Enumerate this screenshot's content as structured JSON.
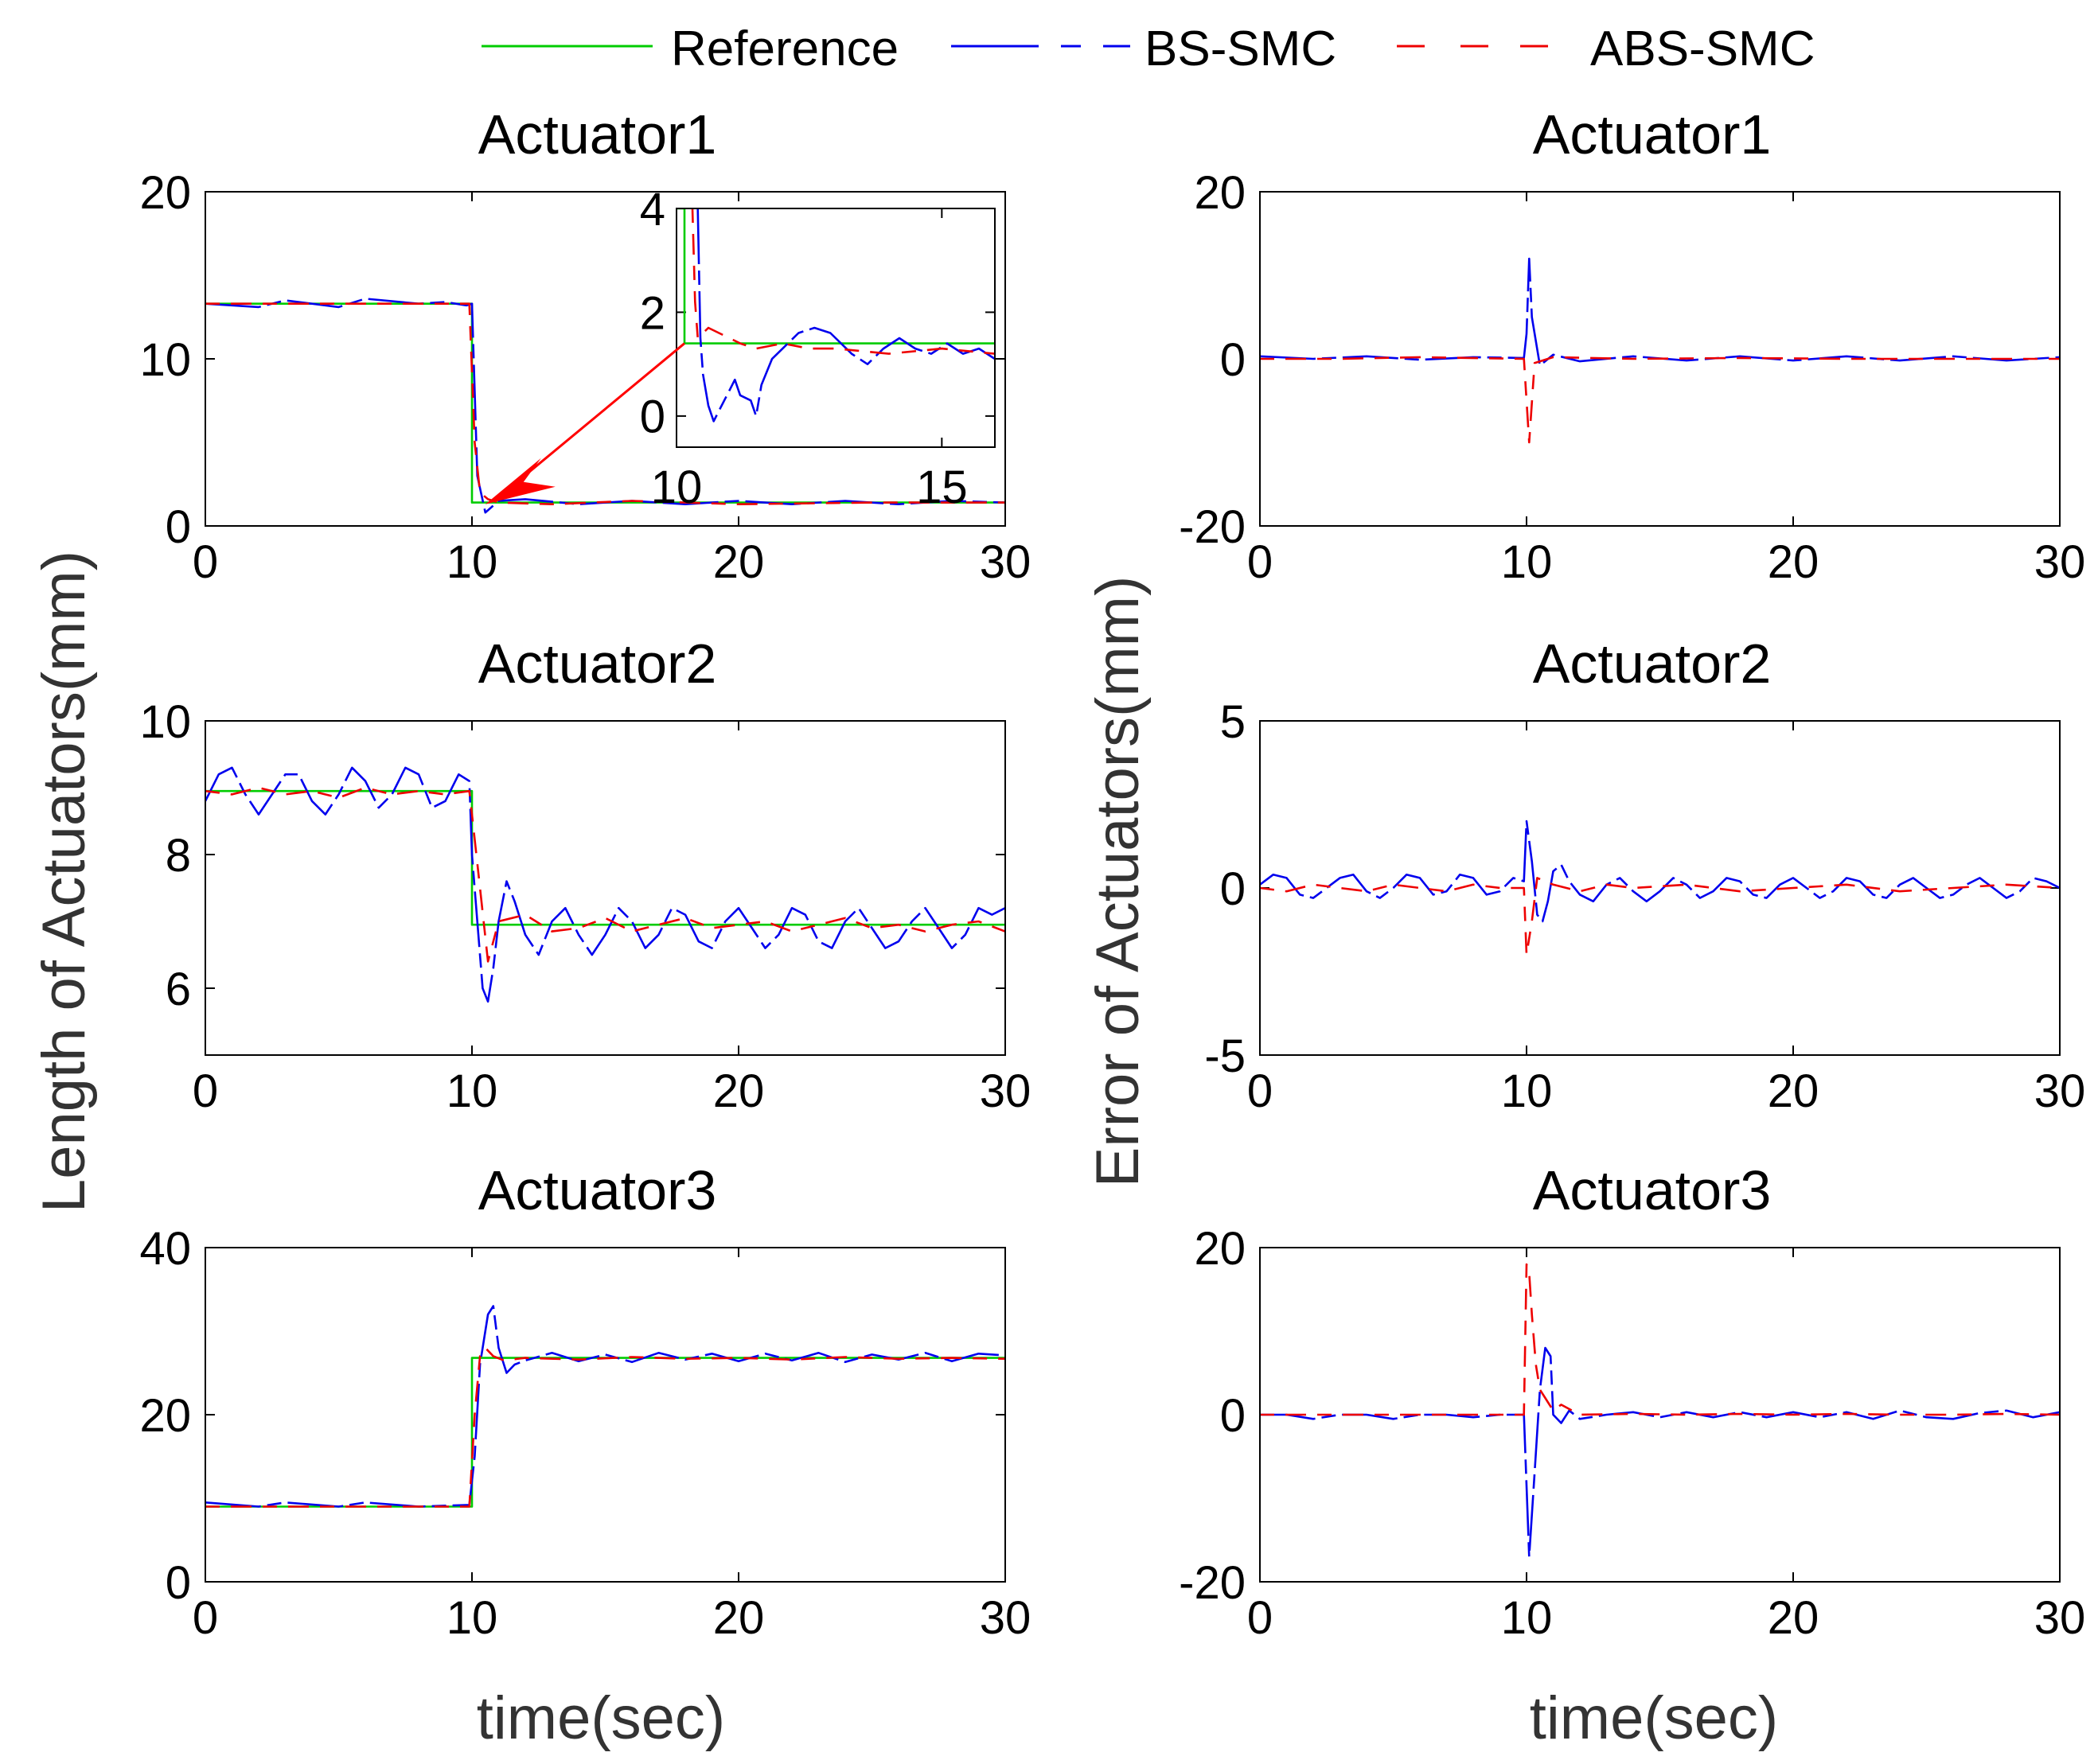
{
  "legend": {
    "items": [
      {
        "label": "Reference",
        "color": "#00cc00",
        "style": "solid"
      },
      {
        "label": "BS-SMC",
        "color": "#0000ee",
        "style": "dash"
      },
      {
        "label": "ABS-SMC",
        "color": "#ee0000",
        "style": "dash"
      }
    ]
  },
  "ylabels": {
    "left": "Length of Actuators(mm)",
    "right": "Error of Actuators(mm)"
  },
  "xlabel": "time(sec)",
  "chart_data": [
    {
      "id": "len1",
      "type": "line",
      "title": "Actuator1",
      "xlim": [
        0,
        30
      ],
      "ylim": [
        0,
        20
      ],
      "xticks": [
        "0",
        "10",
        "20",
        "30"
      ],
      "yticks": [
        "0",
        "10",
        "20"
      ],
      "series": [
        {
          "name": "Reference",
          "x": [
            0,
            10,
            10,
            30
          ],
          "y": [
            13.3,
            13.3,
            1.4,
            1.4
          ]
        },
        {
          "name": "BS-SMC",
          "x": [
            0,
            2,
            3,
            5,
            6,
            8,
            9,
            9.8,
            10.0,
            10.2,
            10.5,
            11,
            12,
            14,
            16,
            18,
            20,
            22,
            24,
            26,
            28,
            30
          ],
          "y": [
            13.3,
            13.1,
            13.5,
            13.1,
            13.6,
            13.3,
            13.4,
            13.2,
            13.3,
            3,
            0.8,
            1.5,
            1.6,
            1.3,
            1.5,
            1.3,
            1.5,
            1.3,
            1.5,
            1.3,
            1.5,
            1.4
          ]
        },
        {
          "name": "ABS-SMC",
          "x": [
            0,
            4,
            8,
            9.9,
            10.1,
            10.3,
            10.6,
            11,
            13,
            16,
            20,
            25,
            30
          ],
          "y": [
            13.3,
            13.3,
            13.3,
            13.3,
            5,
            2.0,
            1.6,
            1.4,
            1.3,
            1.5,
            1.3,
            1.4,
            1.4
          ]
        }
      ],
      "inset": {
        "xlim": [
          10,
          16
        ],
        "ylim": [
          -0.6,
          4
        ],
        "xticks": [
          "10",
          "15"
        ],
        "yticks": [
          "0",
          "2",
          "4"
        ],
        "series": [
          {
            "name": "Reference",
            "x": [
              10,
              10.15,
              10.15,
              16
            ],
            "y": [
              4,
              4,
              1.4,
              1.4
            ]
          },
          {
            "name": "BS-SMC",
            "x": [
              10.4,
              10.45,
              10.5,
              10.6,
              10.7,
              10.8,
              11.0,
              11.1,
              11.2,
              11.4,
              11.5,
              11.6,
              11.8,
              12.0,
              12.3,
              12.6,
              12.9,
              13.1,
              13.3,
              13.6,
              13.9,
              14.2,
              14.5,
              14.8,
              15.1,
              15.4,
              15.7,
              16.0
            ],
            "y": [
              4,
              1.5,
              0.8,
              0.2,
              -0.1,
              0.1,
              0.5,
              0.7,
              0.4,
              0.3,
              0.0,
              0.6,
              1.1,
              1.3,
              1.6,
              1.7,
              1.6,
              1.4,
              1.2,
              1.0,
              1.3,
              1.5,
              1.3,
              1.2,
              1.4,
              1.2,
              1.3,
              1.1
            ]
          },
          {
            "name": "ABS-SMC",
            "x": [
              10.3,
              10.35,
              10.4,
              10.5,
              10.6,
              10.8,
              11.0,
              11.2,
              11.5,
              12.0,
              12.5,
              13.0,
              14.0,
              15.0,
              16.0
            ],
            "y": [
              4,
              2.2,
              1.5,
              1.6,
              1.7,
              1.6,
              1.5,
              1.4,
              1.3,
              1.4,
              1.3,
              1.3,
              1.2,
              1.3,
              1.2
            ]
          }
        ]
      }
    },
    {
      "id": "err1",
      "type": "line",
      "title": "Actuator1",
      "xlim": [
        0,
        30
      ],
      "ylim": [
        -20,
        20
      ],
      "xticks": [
        "0",
        "10",
        "20",
        "30"
      ],
      "yticks": [
        "-20",
        "0",
        "20"
      ],
      "series": [
        {
          "name": "BS-SMC",
          "x": [
            0,
            2,
            4,
            6,
            8,
            9.9,
            10.0,
            10.1,
            10.2,
            10.5,
            11,
            12,
            14,
            16,
            18,
            20,
            22,
            24,
            26,
            28,
            30
          ],
          "y": [
            0.3,
            0.0,
            0.3,
            -0.1,
            0.2,
            0.1,
            3,
            12,
            5,
            -0.8,
            0.5,
            -0.3,
            0.3,
            -0.2,
            0.3,
            -0.2,
            0.3,
            -0.2,
            0.3,
            -0.2,
            0.2
          ]
        },
        {
          "name": "ABS-SMC",
          "x": [
            0,
            3,
            6,
            9.9,
            10.0,
            10.1,
            10.3,
            11,
            14,
            18,
            22,
            26,
            30
          ],
          "y": [
            0,
            0,
            0.2,
            0,
            -5,
            -10,
            -0.5,
            0.2,
            0,
            0.1,
            0,
            0,
            0
          ]
        }
      ]
    },
    {
      "id": "len2",
      "type": "line",
      "title": "Actuator2",
      "xlim": [
        0,
        30
      ],
      "ylim": [
        5,
        10
      ],
      "xticks": [
        "0",
        "10",
        "20",
        "30"
      ],
      "yticks": [
        "6",
        "8",
        "10"
      ],
      "series": [
        {
          "name": "Reference",
          "x": [
            0,
            10,
            10,
            30
          ],
          "y": [
            8.95,
            8.95,
            6.95,
            6.95
          ]
        },
        {
          "name": "BS-SMC",
          "x": [
            0,
            0.5,
            1,
            1.5,
            2,
            2.5,
            3,
            3.5,
            4,
            4.5,
            5,
            5.5,
            6,
            6.5,
            7,
            7.5,
            8,
            8.5,
            9,
            9.5,
            9.9,
            10.0,
            10.2,
            10.4,
            10.6,
            10.8,
            11.0,
            11.3,
            11.6,
            12,
            12.5,
            13,
            13.5,
            14,
            14.5,
            15,
            15.5,
            16,
            16.5,
            17,
            17.5,
            18,
            18.5,
            19,
            19.5,
            20,
            20.5,
            21,
            21.5,
            22,
            22.5,
            23,
            23.5,
            24,
            24.5,
            25,
            25.5,
            26,
            26.5,
            27,
            27.5,
            28,
            28.5,
            29,
            29.5,
            30
          ],
          "y": [
            8.8,
            9.2,
            9.3,
            8.9,
            8.6,
            8.9,
            9.2,
            9.2,
            8.8,
            8.6,
            8.9,
            9.3,
            9.1,
            8.7,
            8.9,
            9.3,
            9.2,
            8.7,
            8.8,
            9.2,
            9.1,
            8.0,
            7.0,
            6.0,
            5.8,
            6.3,
            7.0,
            7.6,
            7.3,
            6.8,
            6.5,
            7.0,
            7.2,
            6.8,
            6.5,
            6.8,
            7.2,
            7.0,
            6.6,
            6.8,
            7.2,
            7.1,
            6.7,
            6.6,
            7.0,
            7.2,
            6.9,
            6.6,
            6.8,
            7.2,
            7.1,
            6.7,
            6.6,
            7.0,
            7.2,
            6.9,
            6.6,
            6.7,
            7.0,
            7.2,
            6.9,
            6.6,
            6.8,
            7.2,
            7.1,
            7.2
          ]
        },
        {
          "name": "ABS-SMC",
          "x": [
            0,
            1,
            2,
            3,
            4,
            5,
            6,
            7,
            8,
            9,
            9.9,
            10.0,
            10.3,
            10.6,
            11,
            12,
            13,
            14,
            15,
            16,
            17,
            18,
            19,
            20,
            21,
            22,
            23,
            24,
            25,
            26,
            27,
            28,
            29,
            30
          ],
          "y": [
            8.95,
            8.9,
            9.0,
            8.9,
            8.95,
            8.85,
            9.0,
            8.9,
            8.95,
            8.9,
            8.95,
            8.6,
            7.5,
            6.4,
            7.0,
            7.1,
            6.85,
            6.9,
            7.05,
            6.85,
            6.95,
            7.05,
            6.9,
            6.95,
            7.0,
            6.85,
            6.95,
            7.05,
            6.9,
            6.95,
            6.85,
            6.95,
            7.0,
            6.85
          ]
        }
      ]
    },
    {
      "id": "err2",
      "type": "line",
      "title": "Actuator2",
      "xlim": [
        0,
        30
      ],
      "ylim": [
        -5,
        5
      ],
      "xticks": [
        "0",
        "10",
        "20",
        "30"
      ],
      "yticks": [
        "-5",
        "0",
        "5"
      ],
      "series": [
        {
          "name": "BS-SMC",
          "x": [
            0,
            0.5,
            1,
            1.5,
            2,
            2.5,
            3,
            3.5,
            4,
            4.5,
            5,
            5.5,
            6,
            6.5,
            7,
            7.5,
            8,
            8.5,
            9,
            9.5,
            9.9,
            10.0,
            10.2,
            10.4,
            10.6,
            10.8,
            11.0,
            11.3,
            11.6,
            12,
            12.5,
            13,
            13.5,
            14,
            14.5,
            15,
            15.5,
            16,
            16.5,
            17,
            17.5,
            18,
            18.5,
            19,
            19.5,
            20,
            20.5,
            21,
            21.5,
            22,
            22.5,
            23,
            23.5,
            24,
            24.5,
            25,
            25.5,
            26,
            26.5,
            27,
            27.5,
            28,
            28.5,
            29,
            29.5,
            30
          ],
          "y": [
            0.1,
            0.4,
            0.3,
            -0.2,
            -0.3,
            0.0,
            0.3,
            0.4,
            -0.1,
            -0.3,
            0.0,
            0.4,
            0.3,
            -0.2,
            -0.1,
            0.4,
            0.3,
            -0.2,
            -0.1,
            0.3,
            0.2,
            2.0,
            0.8,
            -0.8,
            -1.0,
            -0.4,
            0.5,
            0.7,
            0.2,
            -0.2,
            -0.4,
            0.1,
            0.3,
            -0.1,
            -0.4,
            -0.1,
            0.3,
            0.1,
            -0.3,
            -0.1,
            0.3,
            0.2,
            -0.2,
            -0.3,
            0.1,
            0.3,
            0.0,
            -0.3,
            -0.1,
            0.3,
            0.2,
            -0.2,
            -0.3,
            0.1,
            0.3,
            0.0,
            -0.3,
            -0.2,
            0.1,
            0.3,
            0.0,
            -0.3,
            -0.1,
            0.3,
            0.2,
            0.0
          ]
        },
        {
          "name": "ABS-SMC",
          "x": [
            0,
            1,
            2,
            3,
            4,
            5,
            6,
            7,
            8,
            9,
            9.9,
            10.0,
            10.2,
            10.4,
            11,
            12,
            13,
            14,
            16,
            18,
            20,
            22,
            24,
            26,
            28,
            30
          ],
          "y": [
            0.0,
            -0.1,
            0.1,
            0.0,
            -0.1,
            0.1,
            0.0,
            -0.1,
            0.1,
            0.0,
            0.0,
            -2.0,
            -1.0,
            0.3,
            0.1,
            -0.1,
            0.1,
            0.0,
            0.1,
            -0.1,
            0.0,
            0.1,
            -0.1,
            0.0,
            0.1,
            0.0
          ]
        }
      ]
    },
    {
      "id": "len3",
      "type": "line",
      "title": "Actuator3",
      "xlim": [
        0,
        30
      ],
      "ylim": [
        0,
        40
      ],
      "xticks": [
        "0",
        "10",
        "20",
        "30"
      ],
      "yticks": [
        "0",
        "20",
        "40"
      ],
      "series": [
        {
          "name": "Reference",
          "x": [
            0,
            10,
            10,
            30
          ],
          "y": [
            9,
            9,
            26.8,
            26.8
          ]
        },
        {
          "name": "BS-SMC",
          "x": [
            0,
            2,
            3,
            5,
            6,
            8,
            9.9,
            10.1,
            10.3,
            10.6,
            10.8,
            11.0,
            11.3,
            11.6,
            12,
            13,
            14,
            15,
            16,
            17,
            18,
            19,
            20,
            21,
            22,
            23,
            24,
            25,
            26,
            27,
            28,
            29,
            30
          ],
          "y": [
            9.5,
            9.0,
            9.5,
            9.0,
            9.5,
            9.0,
            9.2,
            15,
            26,
            32,
            33,
            28,
            25,
            26,
            26.5,
            27.4,
            26.4,
            27.2,
            26.3,
            27.4,
            26.6,
            27.3,
            26.4,
            27.3,
            26.5,
            27.4,
            26.3,
            27.2,
            26.6,
            27.4,
            26.4,
            27.3,
            27.1
          ]
        },
        {
          "name": "ABS-SMC",
          "x": [
            0,
            4,
            8,
            9.9,
            10.1,
            10.3,
            10.5,
            10.8,
            11.2,
            12,
            14,
            16,
            18,
            20,
            22,
            24,
            26,
            28,
            30
          ],
          "y": [
            9,
            9,
            9,
            9,
            20,
            27,
            28,
            27,
            26.5,
            26.8,
            26.6,
            26.9,
            26.7,
            26.8,
            26.6,
            26.9,
            26.7,
            26.8,
            26.7
          ]
        }
      ]
    },
    {
      "id": "err3",
      "type": "line",
      "title": "Actuator3",
      "xlim": [
        0,
        30
      ],
      "ylim": [
        -20,
        20
      ],
      "xticks": [
        "0",
        "10",
        "20",
        "30"
      ],
      "yticks": [
        "-20",
        "0",
        "20"
      ],
      "series": [
        {
          "name": "BS-SMC",
          "x": [
            0,
            1,
            2,
            3,
            4,
            5,
            6,
            7,
            8,
            9,
            9.9,
            10.1,
            10.3,
            10.5,
            10.7,
            10.9,
            11.0,
            11.3,
            11.6,
            12,
            13,
            14,
            15,
            16,
            17,
            18,
            19,
            20,
            21,
            22,
            23,
            24,
            25,
            26,
            27,
            28,
            29,
            30
          ],
          "y": [
            0,
            0,
            -0.5,
            0,
            0,
            -0.5,
            0,
            0,
            -0.3,
            0,
            0,
            -17,
            -7,
            3,
            8,
            7,
            0,
            -1,
            0.5,
            -0.5,
            0,
            0.3,
            -0.3,
            0.3,
            -0.3,
            0.3,
            -0.3,
            0.3,
            -0.3,
            0.3,
            -0.5,
            0.5,
            -0.3,
            -0.5,
            0.2,
            0.5,
            -0.3,
            0.3
          ]
        },
        {
          "name": "ABS-SMC",
          "x": [
            0,
            3,
            6,
            9.9,
            10.0,
            10.1,
            10.2,
            10.35,
            10.5,
            10.7,
            11.0,
            11.3,
            12,
            14,
            16,
            18,
            20,
            22,
            24,
            26,
            28,
            30
          ],
          "y": [
            0,
            0,
            0,
            0,
            18,
            17,
            12,
            6,
            3,
            2,
            0.5,
            1.2,
            0,
            0.1,
            0,
            0.1,
            0,
            0.1,
            0,
            0,
            0.1,
            0
          ]
        }
      ]
    }
  ]
}
